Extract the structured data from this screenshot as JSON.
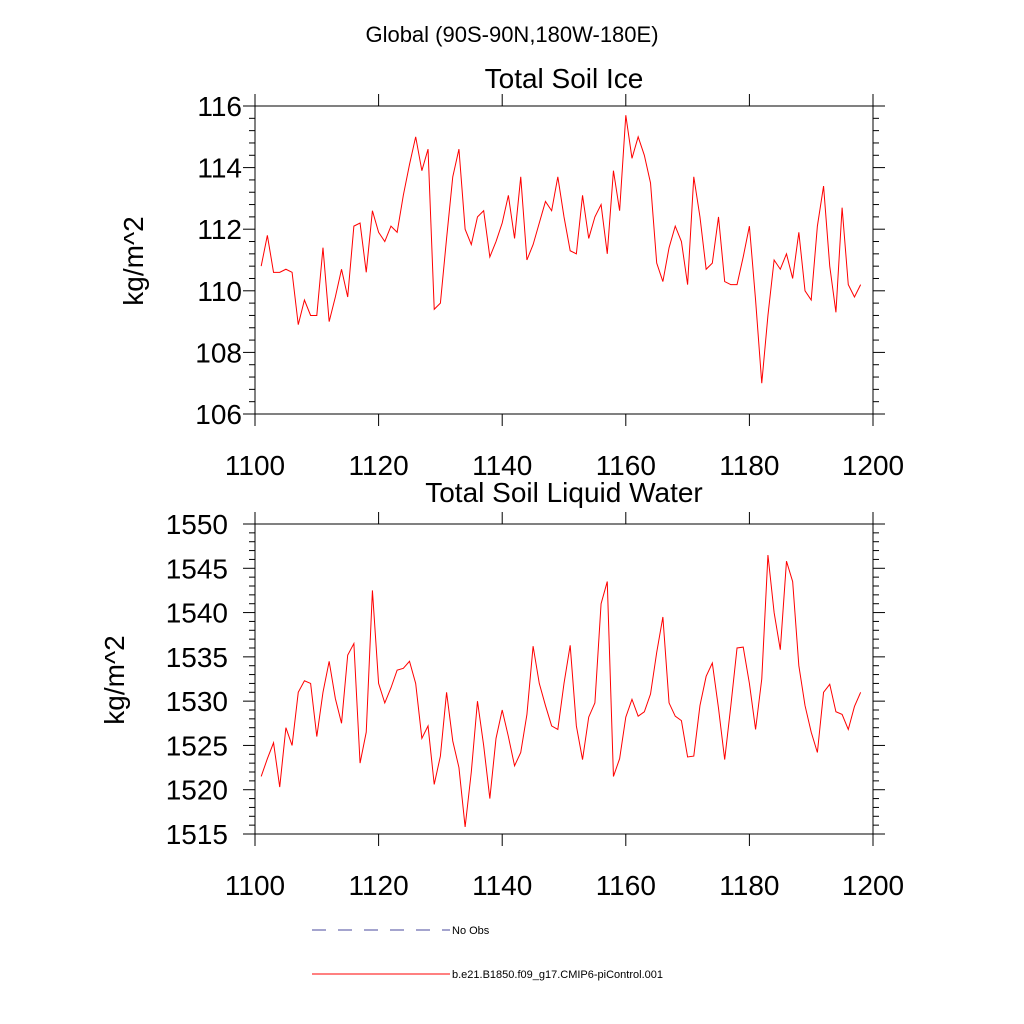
{
  "suptitle": "Global (90S-90N,180W-180E)",
  "colors": {
    "model": "#ff0000",
    "obs": "#4a4a9e",
    "axis": "#000000"
  },
  "legend": {
    "obs_label": "No Obs",
    "model_label": "b.e21.B1850.f09_g17.CMIP6-piControl.001"
  },
  "chart_data": [
    {
      "type": "line",
      "title": "Total Soil Ice",
      "xlabel": "",
      "ylabel": "kg/m^2",
      "xlim": [
        1100,
        1200
      ],
      "ylim": [
        106,
        116
      ],
      "xticks": [
        1100,
        1120,
        1140,
        1160,
        1180,
        1200
      ],
      "xtick_labels": [
        "1100",
        "1120",
        "1140",
        "1160",
        "1180",
        "1200"
      ],
      "yticks": [
        106,
        108,
        110,
        112,
        114,
        116
      ],
      "ytick_labels": [
        "106",
        "108",
        "110",
        "112",
        "114",
        "116"
      ],
      "grid": false,
      "series": [
        {
          "name": "b.e21.B1850.f09_g17.CMIP6-piControl.001",
          "x_start": 1101,
          "x_step": 1,
          "values": [
            110.8,
            111.8,
            110.6,
            110.6,
            110.7,
            110.6,
            108.9,
            109.7,
            109.2,
            109.2,
            111.4,
            109.0,
            109.8,
            110.7,
            109.8,
            112.1,
            112.2,
            110.6,
            112.6,
            111.9,
            111.6,
            112.1,
            111.9,
            113.1,
            114.1,
            115.0,
            113.9,
            114.6,
            109.4,
            109.6,
            111.7,
            113.7,
            114.6,
            112.0,
            111.5,
            112.4,
            112.6,
            111.1,
            111.6,
            112.2,
            113.1,
            111.7,
            113.7,
            111.0,
            111.5,
            112.2,
            112.9,
            112.6,
            113.7,
            112.4,
            111.3,
            111.2,
            113.1,
            111.7,
            112.4,
            112.8,
            111.2,
            113.9,
            112.6,
            115.7,
            114.3,
            115.0,
            114.4,
            113.5,
            110.9,
            110.3,
            111.4,
            112.1,
            111.6,
            110.2,
            113.7,
            112.4,
            110.7,
            110.9,
            112.4,
            110.3,
            110.2,
            110.2,
            111.1,
            112.1,
            109.7,
            107.0,
            109.2,
            111.0,
            110.7,
            111.2,
            110.4,
            111.9,
            110.0,
            109.7,
            112.1,
            113.4,
            110.8,
            109.3,
            112.7,
            110.2,
            109.8,
            110.2
          ]
        }
      ]
    },
    {
      "type": "line",
      "title": "Total Soil Liquid Water",
      "xlabel": "",
      "ylabel": "kg/m^2",
      "xlim": [
        1100,
        1200
      ],
      "ylim": [
        1515,
        1550
      ],
      "xticks": [
        1100,
        1120,
        1140,
        1160,
        1180,
        1200
      ],
      "xtick_labels": [
        "1100",
        "1120",
        "1140",
        "1160",
        "1180",
        "1200"
      ],
      "yticks": [
        1515,
        1520,
        1525,
        1530,
        1535,
        1540,
        1545,
        1550
      ],
      "ytick_labels": [
        "1515",
        "1520",
        "1525",
        "1530",
        "1535",
        "1540",
        "1545",
        "1550"
      ],
      "grid": false,
      "series": [
        {
          "name": "b.e21.B1850.f09_g17.CMIP6-piControl.001",
          "x_start": 1101,
          "x_step": 1,
          "values": [
            1521.5,
            1523.5,
            1525.3,
            1520.3,
            1527.0,
            1525.0,
            1531.0,
            1532.3,
            1532.0,
            1526.0,
            1531.0,
            1534.5,
            1530.3,
            1527.5,
            1535.2,
            1536.5,
            1523.0,
            1526.5,
            1542.5,
            1532.0,
            1529.8,
            1531.5,
            1533.5,
            1533.7,
            1534.5,
            1532.0,
            1525.8,
            1527.2,
            1520.6,
            1523.8,
            1531.0,
            1525.5,
            1522.5,
            1515.8,
            1522.0,
            1530.0,
            1525.0,
            1519.0,
            1525.8,
            1529.0,
            1526.0,
            1522.7,
            1524.2,
            1528.5,
            1536.2,
            1532.0,
            1529.5,
            1527.2,
            1526.8,
            1532.0,
            1536.3,
            1527.2,
            1523.4,
            1528.2,
            1529.8,
            1541.0,
            1543.5,
            1521.5,
            1523.5,
            1528.2,
            1530.2,
            1528.3,
            1528.8,
            1530.8,
            1535.5,
            1539.5,
            1529.8,
            1528.3,
            1527.8,
            1523.7,
            1523.8,
            1529.5,
            1532.8,
            1534.3,
            1529.2,
            1523.4,
            1529.5,
            1536.0,
            1536.1,
            1532.0,
            1526.8,
            1532.5,
            1546.5,
            1540.0,
            1535.8,
            1545.8,
            1543.5,
            1534.0,
            1529.5,
            1526.5,
            1524.2,
            1531.0,
            1531.9,
            1528.8,
            1528.5,
            1526.8,
            1529.4,
            1531.0
          ]
        }
      ]
    }
  ]
}
